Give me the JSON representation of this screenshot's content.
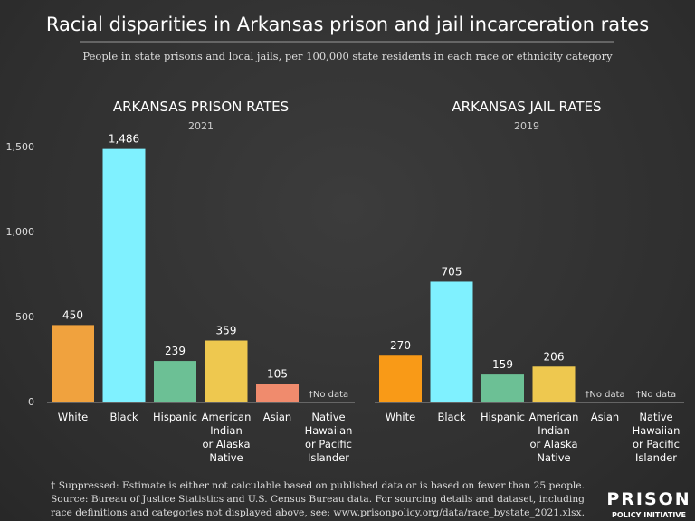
{
  "title": "Racial disparities in Arkansas prison and jail incarceration rates",
  "subtitle": "People in state prisons and local jails, per 100,000 state residents in each race or ethnicity category",
  "footnote": [
    "† Suppressed: Estimate is either not calculable based on published data or is based on fewer than 25 people.",
    "Source: Bureau of Justice Statistics and U.S. Census Bureau data. For sourcing details and dataset, including",
    "race definitions and categories not displayed above, see: www.prisonpolicy.org/data/race_bystate_2021.xlsx."
  ],
  "logo": {
    "line1": "PRISON",
    "line2": "POLICY INITIATIVE"
  },
  "no_data_label": "†No data",
  "chart_data": [
    {
      "type": "bar",
      "title": "ARKANSAS PRISON RATES",
      "subtitle": "2021",
      "categories": [
        [
          "White"
        ],
        [
          "Black"
        ],
        [
          "Hispanic"
        ],
        [
          "American",
          "Indian",
          "or Alaska",
          "Native"
        ],
        [
          "Asian"
        ],
        [
          "Native",
          "Hawaiian",
          "or Pacific",
          "Islander"
        ]
      ],
      "values": [
        450,
        1486,
        239,
        359,
        105,
        null
      ],
      "value_labels": [
        "450",
        "1,486",
        "239",
        "359",
        "105",
        null
      ],
      "colors": [
        "#f0a23e",
        "#7ff1ff",
        "#6cc095",
        "#eec84f",
        "#f08b6d",
        "#888888"
      ],
      "ylim": [
        0,
        1500
      ],
      "yticks": [
        0,
        500,
        1000,
        1500
      ],
      "ytick_labels": [
        "0",
        "500",
        "1,000",
        "1,500"
      ],
      "grid": false
    },
    {
      "type": "bar",
      "title": "ARKANSAS JAIL RATES",
      "subtitle": "2019",
      "categories": [
        [
          "White"
        ],
        [
          "Black"
        ],
        [
          "Hispanic"
        ],
        [
          "American",
          "Indian",
          "or Alaska",
          "Native"
        ],
        [
          "Asian"
        ],
        [
          "Native",
          "Hawaiian",
          "or Pacific",
          "Islander"
        ]
      ],
      "values": [
        270,
        705,
        159,
        206,
        null,
        null
      ],
      "value_labels": [
        "270",
        "705",
        "159",
        "206",
        null,
        null
      ],
      "colors": [
        "#f99a17",
        "#7ff1ff",
        "#6cc095",
        "#eec84f",
        "#f08b6d",
        "#888888"
      ],
      "ylim": [
        0,
        1500
      ],
      "grid": false
    }
  ]
}
